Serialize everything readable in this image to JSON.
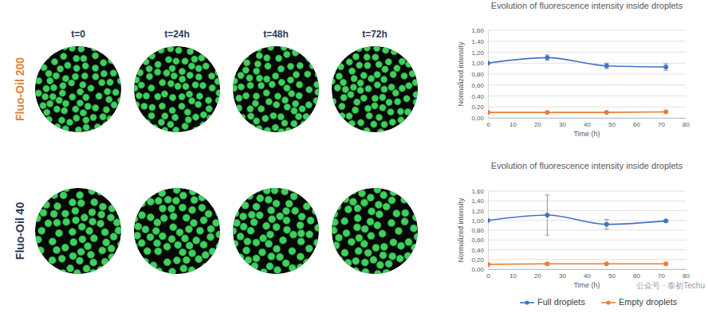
{
  "panels": {
    "column_labels": [
      "t=0",
      "t=24h",
      "t=48h",
      "t=72h"
    ],
    "row_labels": [
      "Fluo-Oil 200",
      "Fluo-Oil 40"
    ]
  },
  "watermark": "公众号 · 泰初Techu",
  "chart_data": [
    {
      "type": "line",
      "title": "Evolution of fluorescence intensity inside droplets",
      "x_label": "Time (h)",
      "y_label": "Normalized intensity",
      "x": [
        0,
        24,
        48,
        72
      ],
      "xlim": [
        0,
        80
      ],
      "xticks": [
        0,
        10,
        20,
        30,
        40,
        50,
        60,
        70,
        80
      ],
      "ylim": [
        0,
        1.6
      ],
      "yticks": [
        {
          "value": 0,
          "label": "0,00"
        },
        {
          "value": 0.2,
          "label": "0,20"
        },
        {
          "value": 0.4,
          "label": "0,40"
        },
        {
          "value": 0.6,
          "label": "0,60"
        },
        {
          "value": 0.8,
          "label": "0,80"
        },
        {
          "value": 1,
          "label": "1,00"
        },
        {
          "value": 1.2,
          "label": "1,20"
        },
        {
          "value": 1.4,
          "label": "1,40"
        },
        {
          "value": 1.6,
          "label": "1,60"
        }
      ],
      "grid": true,
      "marker": "circle",
      "line_style": "solid",
      "series": [
        {
          "color": "#4472c4",
          "values": [
            1.0,
            1.1,
            0.95,
            0.93
          ],
          "error": [
            0,
            0.05,
            0.05,
            0.06
          ]
        },
        {
          "color": "#ed7d31",
          "values": [
            0.1,
            0.1,
            0.1,
            0.11
          ],
          "error": [
            0,
            0.01,
            0,
            0.01
          ]
        }
      ]
    },
    {
      "type": "line",
      "title": "Evolution of fluorescence intensity inside droplets",
      "x_label": "Time (h)",
      "y_label": "Normalized intensity",
      "x": [
        0,
        24,
        48,
        72
      ],
      "xlim": [
        0,
        80
      ],
      "xticks": [
        0,
        10,
        20,
        30,
        40,
        50,
        60,
        70,
        80
      ],
      "ylim": [
        0,
        1.6
      ],
      "yticks": [
        {
          "value": 0,
          "label": "0,00"
        },
        {
          "value": 0.2,
          "label": "0,20"
        },
        {
          "value": 0.4,
          "label": "0,40"
        },
        {
          "value": 0.6,
          "label": "0,60"
        },
        {
          "value": 0.8,
          "label": "0,80"
        },
        {
          "value": 1,
          "label": "1,00"
        },
        {
          "value": 1.2,
          "label": "1,20"
        },
        {
          "value": 1.4,
          "label": "1,40"
        },
        {
          "value": 1.6,
          "label": "1,60"
        }
      ],
      "grid": true,
      "marker": "circle",
      "line_style": "solid",
      "legend": "bottom",
      "series": [
        {
          "name": "Full droplets",
          "color": "#4472c4",
          "values": [
            1.0,
            1.11,
            0.92,
            0.99
          ],
          "error": [
            0,
            0.41,
            0.1,
            0.01
          ]
        },
        {
          "name": "Empty droplets",
          "color": "#ed7d31",
          "values": [
            0.1,
            0.11,
            0.11,
            0.11
          ],
          "error": [
            0,
            0.02,
            0,
            0
          ]
        }
      ]
    }
  ]
}
